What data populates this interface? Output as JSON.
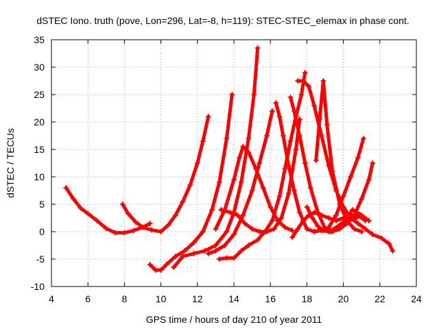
{
  "chart_data": {
    "type": "scatter",
    "title": "dSTEC Iono. truth (pove, Lon=296, Lat=-8, h=119): STEC-STEC_elemax in phase cont.",
    "xlabel": "GPS time / hours of day 210 of year 2011",
    "ylabel": "dSTEC  / TECUs",
    "xlim": [
      4,
      24
    ],
    "ylim": [
      -10,
      35
    ],
    "xticks": [
      4,
      6,
      8,
      10,
      12,
      14,
      16,
      18,
      20,
      22,
      24
    ],
    "yticks": [
      -10,
      -5,
      0,
      5,
      10,
      15,
      20,
      25,
      30,
      35
    ],
    "xtick_labels": [
      "4",
      "6",
      "8",
      "10",
      "12",
      "14",
      "16",
      "18",
      "20",
      "22",
      "24"
    ],
    "ytick_labels": [
      "-10",
      "-5",
      "0",
      "5",
      "10",
      "15",
      "20",
      "25",
      "30",
      "35"
    ],
    "grid": true,
    "color": "#ff0000",
    "marker": "+",
    "series": [
      {
        "x": [
          4.8,
          5.2,
          5.6,
          6.0,
          6.5,
          7.0,
          7.5,
          8.0,
          8.5,
          9.0,
          9.5,
          10.0,
          10.4,
          10.8,
          11.2,
          11.6,
          12.0,
          12.3,
          12.6
        ],
        "y": [
          8.0,
          6.0,
          4.3,
          3.3,
          2.0,
          0.6,
          -0.2,
          -0.2,
          0.2,
          0.8,
          0.3,
          0.0,
          1.2,
          3.0,
          5.5,
          8.5,
          12.5,
          16.5,
          21.0
        ]
      },
      {
        "x": [
          7.9,
          8.2,
          8.6,
          9.0,
          9.4
        ],
        "y": [
          5.0,
          3.3,
          1.8,
          0.8,
          1.5
        ]
      },
      {
        "x": [
          9.4,
          9.7,
          10.0,
          10.3,
          10.8,
          11.3,
          11.8,
          12.3,
          12.8,
          13.2,
          13.6,
          13.9
        ],
        "y": [
          -6.0,
          -7.0,
          -7.0,
          -6.0,
          -4.5,
          -3.5,
          -2.0,
          0.0,
          4.0,
          9.0,
          17.0,
          25.0
        ]
      },
      {
        "x": [
          10.7,
          11.2,
          11.8,
          12.4,
          13.0,
          13.6,
          14.0,
          14.4,
          14.8,
          15.1,
          15.3
        ],
        "y": [
          -6.5,
          -4.5,
          -4.0,
          -3.5,
          -2.5,
          0.0,
          3.5,
          9.0,
          17.0,
          25.0,
          33.5
        ]
      },
      {
        "x": [
          12.6,
          13.0,
          13.5,
          14.0,
          14.5,
          15.0,
          15.4,
          15.8,
          16.1
        ],
        "y": [
          -4.0,
          -3.5,
          -2.5,
          -0.5,
          3.0,
          7.5,
          12.5,
          17.5,
          22.0
        ]
      },
      {
        "x": [
          13.3,
          13.8,
          14.2,
          14.6,
          15.0,
          15.4,
          15.8,
          16.2,
          16.6,
          17.0,
          17.4,
          17.6
        ],
        "y": [
          4.0,
          3.5,
          3.0,
          1.5,
          0.5,
          0.0,
          0.0,
          0.5,
          2.5,
          7.0,
          15.0,
          20.5
        ]
      },
      {
        "x": [
          13.2,
          13.6,
          14.0,
          14.4,
          14.8,
          15.3,
          15.7,
          16.1,
          16.5,
          16.8,
          17.1,
          17.4,
          17.7,
          17.9
        ],
        "y": [
          -5.0,
          -4.8,
          -4.8,
          -3.5,
          -2.5,
          -1.5,
          0.0,
          2.0,
          6.5,
          11.5,
          16.5,
          21.0,
          25.0,
          29.0
        ]
      },
      {
        "x": [
          13.0,
          13.5,
          14.0,
          14.3,
          14.5,
          14.8,
          15.2,
          15.6,
          16.0,
          16.4,
          16.8,
          17.2
        ],
        "y": [
          0.5,
          4.0,
          9.5,
          13.5,
          15.5,
          14.5,
          11.5,
          8.0,
          4.5,
          2.0,
          0.8,
          0.2
        ]
      },
      {
        "x": [
          16.3,
          16.5,
          16.7,
          17.0,
          17.3,
          17.6,
          18.0,
          18.4,
          18.8,
          19.2
        ],
        "y": [
          23.5,
          21.0,
          17.5,
          12.0,
          7.5,
          3.5,
          0.5,
          0.0,
          0.3,
          0.5
        ]
      },
      {
        "x": [
          17.1,
          17.3,
          17.6,
          17.9,
          18.2,
          18.6,
          19.0,
          19.3,
          19.7,
          20.1,
          20.5,
          21.0,
          21.4
        ],
        "y": [
          24.5,
          22.0,
          17.5,
          12.5,
          8.0,
          3.5,
          0.5,
          0.0,
          0.5,
          2.0,
          4.0,
          3.0,
          2.0
        ]
      },
      {
        "x": [
          17.2,
          17.5,
          17.8,
          18.1,
          18.4,
          18.8,
          19.2,
          19.6,
          20.0,
          20.4,
          20.8,
          21.2
        ],
        "y": [
          -1.0,
          0.5,
          2.0,
          3.0,
          3.5,
          3.0,
          2.5,
          2.0,
          2.5,
          3.0,
          3.0,
          2.0
        ]
      },
      {
        "x": [
          17.5,
          17.8,
          18.1,
          18.4,
          18.8,
          19.2,
          19.6,
          20.0,
          20.4,
          20.8,
          21.2,
          21.6,
          22.1,
          22.5,
          22.7
        ],
        "y": [
          27.5,
          27.5,
          26.5,
          23.0,
          17.5,
          12.0,
          7.5,
          4.5,
          2.5,
          1.5,
          0.5,
          -0.5,
          -1.2,
          -2.2,
          -3.5
        ]
      },
      {
        "x": [
          18.5,
          18.7,
          18.9,
          19.1,
          19.4,
          19.8,
          20.2,
          20.6,
          21.0
        ],
        "y": [
          13.0,
          20.5,
          27.5,
          19.5,
          11.0,
          5.0,
          2.0,
          0.5,
          0.0
        ]
      },
      {
        "x": [
          18.4,
          18.8,
          19.2,
          19.6,
          20.0,
          20.4,
          20.8,
          21.1
        ],
        "y": [
          0.0,
          0.2,
          0.8,
          3.0,
          6.5,
          10.0,
          13.5,
          17.0
        ]
      },
      {
        "x": [
          19.4,
          19.8,
          20.2,
          20.6,
          21.0,
          21.4,
          21.6
        ],
        "y": [
          0.0,
          0.5,
          1.5,
          3.0,
          6.0,
          9.5,
          12.5
        ]
      },
      {
        "x": [
          18.0,
          18.3,
          18.6,
          18.9,
          19.2,
          19.5,
          19.9,
          20.3,
          20.7,
          21.0
        ],
        "y": [
          4.5,
          2.5,
          1.0,
          0.2,
          0.0,
          0.5,
          1.5,
          2.0,
          2.5,
          3.0
        ]
      }
    ]
  }
}
